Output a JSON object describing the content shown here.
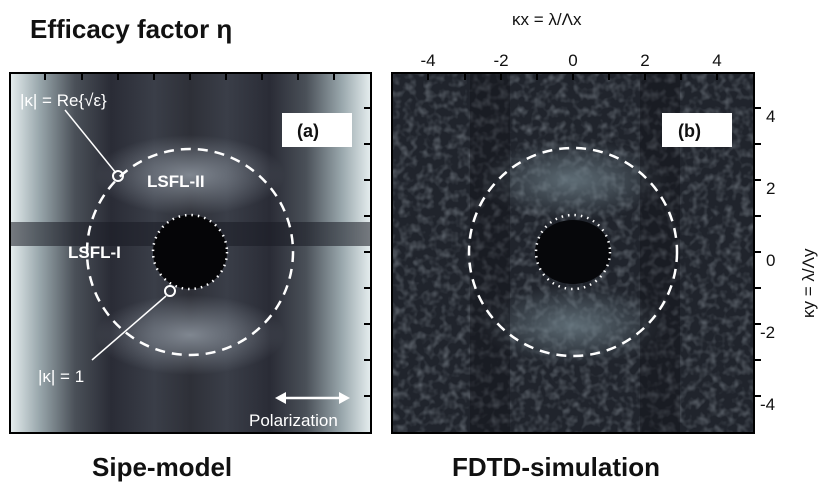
{
  "titles": {
    "panel_a": "Efficacy factor η",
    "panel_b_bottom": "FDTD-simulation",
    "panel_a_bottom": "Sipe-model"
  },
  "axes": {
    "top_label": "κx = λ/Λx",
    "right_label": "κy = λ/Λy",
    "x_ticks": [
      "-4",
      "-2",
      "0",
      "2",
      "4"
    ],
    "y_ticks": [
      "4",
      "2",
      "0",
      "-2",
      "-4"
    ]
  },
  "panel_a": {
    "tag": "(a)",
    "annotation_outer": "|κ| = Re{√ε}",
    "annotation_inner": "|κ| = 1",
    "region_outer": "LSFL-II",
    "region_inner": "LSFL-I",
    "polarization": "Polarization"
  },
  "panel_b": {
    "tag": "(b)"
  },
  "colors": {
    "background": "#ffffff",
    "map_dark": "#14141c",
    "map_light": "#dfe8ea",
    "overlay": "#ffffff"
  }
}
